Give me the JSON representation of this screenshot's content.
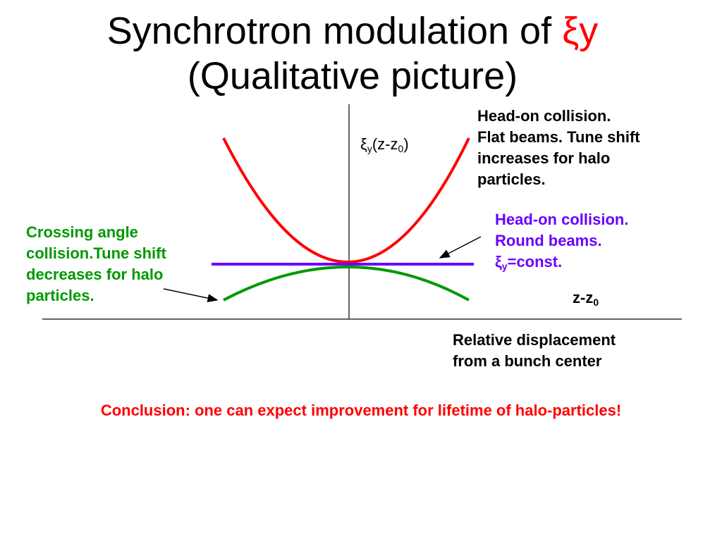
{
  "title": {
    "line1_prefix": "Synchrotron modulation of ",
    "line1_symbol": "ξy",
    "line2": "(Qualitative picture)"
  },
  "axes": {
    "y_label": {
      "symbol": "ξ",
      "sub1": "y",
      "mid": "(z-z",
      "sub2": "0",
      "end": ")"
    },
    "x_label": {
      "main": "z-z",
      "sub": "0"
    }
  },
  "labels": {
    "flat": [
      "Head-on collision.",
      "Flat beams. Tune shift",
      "increases for halo",
      "particles."
    ],
    "round": {
      "line1": "Head-on collision.",
      "line2": "Round beams.",
      "line3_symbol": "ξ",
      "line3_sub": "y",
      "line3_rest": "=const."
    },
    "crossing": [
      "Crossing angle",
      "collision.Tune shift",
      "decreases for halo",
      "particles."
    ],
    "relative": [
      "Relative displacement",
      "from a bunch center"
    ]
  },
  "conclusion": "Conclusion: one can expect improvement for lifetime of halo-particles!",
  "colors": {
    "red": "#ff0000",
    "purple": "#6a00ff",
    "green": "#009900",
    "axis": "#333333"
  }
}
